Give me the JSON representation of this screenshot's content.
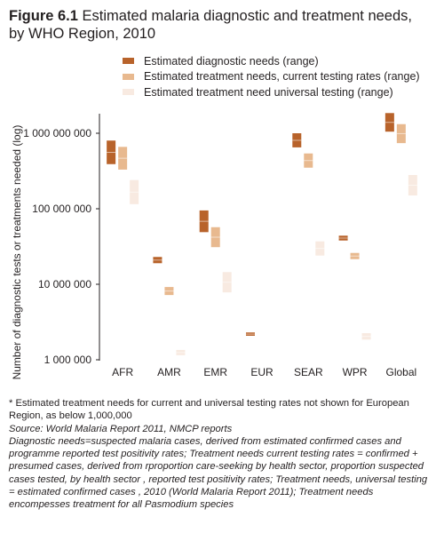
{
  "figure": {
    "number": "Figure 6.1",
    "title": "Estimated malaria diagnostic and treatment needs, by WHO Region, 2010"
  },
  "notes": {
    "footnote": "* Estimated treatment needs for current and universal testing rates not shown for European Region, as below 1,000,000",
    "source": "Source: World Malaria Report 2011, NMCP reports",
    "definitions": "Diagnostic needs=suspected malaria cases, derived from estimated confirmed cases and programme reported test positivity rates; Treatment needs current testing rates = confirmed + presumed  cases, derived from rproportion  care-seeking by health sector, proportion  suspected cases tested, by health sector , reported test positivity rates; Treatment needs, universal testing = estimated confirmed cases , 2010 (World Malaria Report 2011); Treatment needs encompesses treatment for all Pasmodium species"
  },
  "chart_data": {
    "type": "range-bar",
    "title": "Estimated malaria diagnostic and treatment needs, by WHO Region, 2010",
    "ylabel": "Number of diagnostic tests or treatments needed (log)",
    "yscale": "log",
    "ylim": [
      1000000,
      2000000000
    ],
    "yticks": [
      1000000,
      10000000,
      100000000,
      1000000000
    ],
    "ytick_labels": [
      "1 000 000",
      "10 000 000",
      "100 000 000",
      "1 000 000 000"
    ],
    "categories": [
      "AFR",
      "AMR",
      "EMR",
      "EUR",
      "SEAR",
      "WPR",
      "Global"
    ],
    "series": [
      {
        "name": "Estimated diagnostic needs (range)",
        "color": "#b8632b",
        "ranges": [
          [
            390000000,
            800000000
          ],
          [
            19000000,
            23000000
          ],
          [
            49000000,
            95000000
          ],
          [
            2080000,
            2300000
          ],
          [
            650000000,
            1000000000
          ],
          [
            38000000,
            44000000
          ],
          [
            1050000000,
            1850000000
          ]
        ]
      },
      {
        "name": "Estimated treatment needs, current testing rates (range)",
        "color": "#e8b98f",
        "ranges": [
          [
            330000000,
            660000000
          ],
          [
            7200000,
            9200000
          ],
          [
            31000000,
            57000000
          ],
          null,
          [
            350000000,
            540000000
          ],
          [
            21500000,
            26000000
          ],
          [
            740000000,
            1320000000
          ]
        ]
      },
      {
        "name": "Estimated treatment need universal testing (range)",
        "color": "#f8eae1",
        "ranges": [
          [
            115000000,
            240000000
          ],
          [
            1150000,
            1350000
          ],
          [
            7800000,
            14500000
          ],
          null,
          [
            24000000,
            37000000
          ],
          [
            1850000,
            2250000
          ],
          [
            150000000,
            280000000
          ]
        ]
      }
    ],
    "legend_position": "top",
    "grid": false
  }
}
